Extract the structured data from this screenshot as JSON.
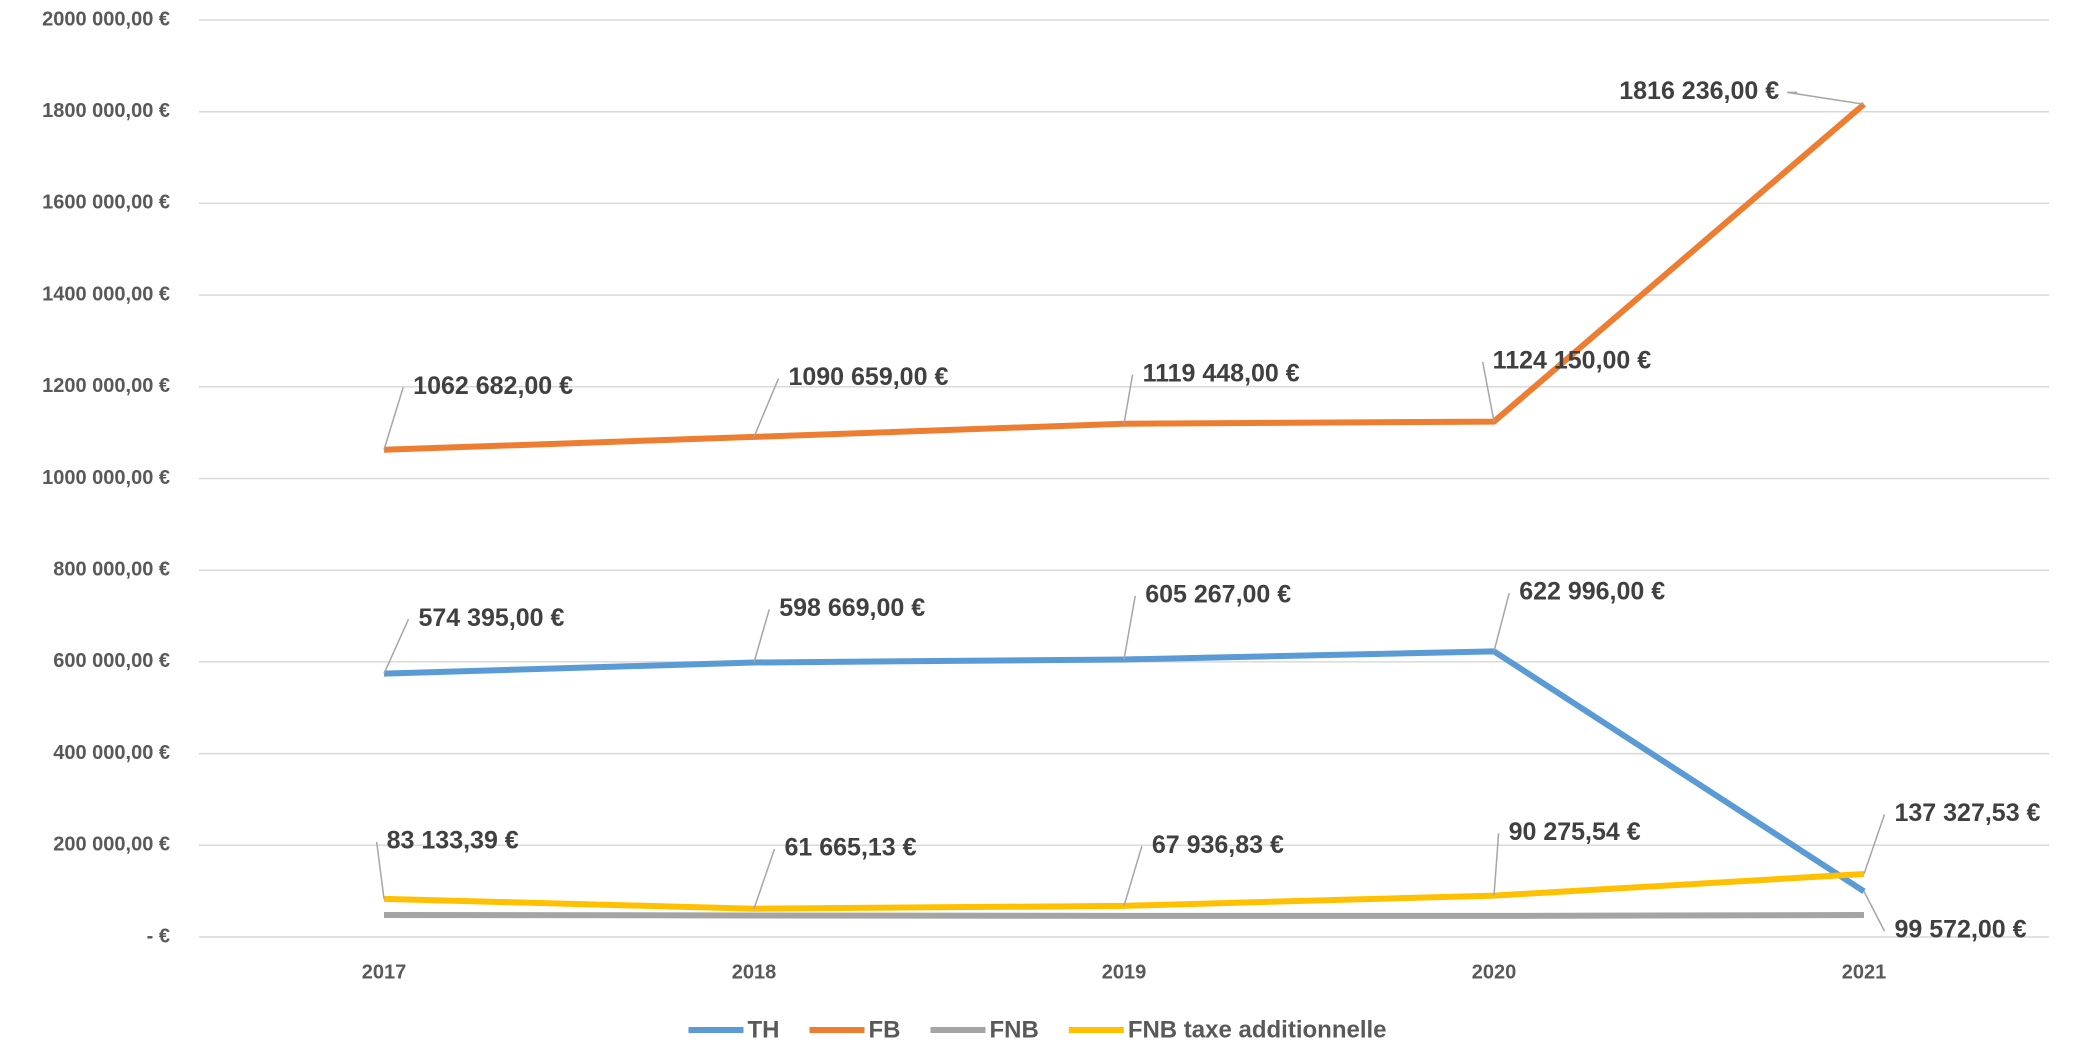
{
  "chart_data": {
    "type": "line",
    "categories": [
      "2017",
      "2018",
      "2019",
      "2020",
      "2021"
    ],
    "series": [
      {
        "name": "TH",
        "color": "#5b9bd5",
        "values": [
          574395,
          598669,
          605267,
          622996,
          99572
        ],
        "value_labels": [
          "574 395,00 €",
          "598 669,00 €",
          "605 267,00 €",
          "622 996,00 €",
          "99 572,00 €"
        ]
      },
      {
        "name": "FB",
        "color": "#ed7d31",
        "values": [
          1062682,
          1090659,
          1119448,
          1124150,
          1816236
        ],
        "value_labels": [
          "1062 682,00 €",
          "1090 659,00 €",
          "1119 448,00 €",
          "1124 150,00 €",
          "1816 236,00 €"
        ]
      },
      {
        "name": "FNB",
        "color": "#a5a5a5",
        "values": [
          48000,
          47000,
          46000,
          46000,
          48000
        ]
      },
      {
        "name": "FNB taxe additionnelle",
        "color": "#ffc000",
        "values": [
          83133.39,
          61665.13,
          67936.83,
          90275.54,
          137327.53
        ],
        "value_labels": [
          "83 133,39 €",
          "61 665,13 €",
          "67 936,83 €",
          "90 275,54 €",
          "137 327,53 €"
        ]
      }
    ],
    "ylim": [
      0,
      2000000
    ],
    "yticks": [
      {
        "value": 0,
        "label": "-  €"
      },
      {
        "value": 200000,
        "label": "200 000,00 €"
      },
      {
        "value": 400000,
        "label": "400 000,00 €"
      },
      {
        "value": 600000,
        "label": "600 000,00 €"
      },
      {
        "value": 800000,
        "label": "800 000,00 €"
      },
      {
        "value": 1000000,
        "label": "1000 000,00 €"
      },
      {
        "value": 1200000,
        "label": "1200 000,00 €"
      },
      {
        "value": 1400000,
        "label": "1400 000,00 €"
      },
      {
        "value": 1600000,
        "label": "1600 000,00 €"
      },
      {
        "value": 1800000,
        "label": "1800 000,00 €"
      },
      {
        "value": 2000000,
        "label": "2000 000,00 €"
      }
    ],
    "grid": true,
    "legend": "bottom"
  }
}
